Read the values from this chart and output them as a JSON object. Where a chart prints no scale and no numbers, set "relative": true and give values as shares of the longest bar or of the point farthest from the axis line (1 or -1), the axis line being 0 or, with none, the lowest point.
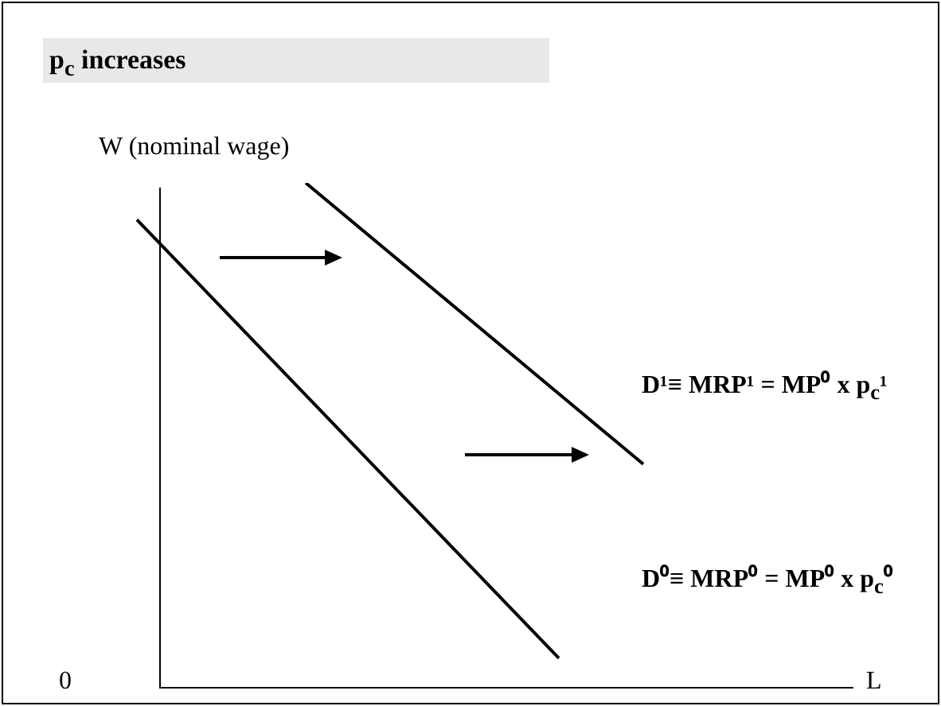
{
  "chart_data": {
    "type": "line",
    "title": "p$_{c}$ increases",
    "xlabel": "L",
    "ylabel": "W (nominal wage)",
    "annotations": [
      "0"
    ],
    "relative": true,
    "legend": false,
    "grid": false,
    "marker": "none",
    "line_style": "solid",
    "categories": [
      null,
      null,
      null,
      null,
      null,
      null,
      null,
      null,
      null,
      null,
      null,
      null,
      null,
      null,
      null,
      null,
      null,
      null
    ],
    "series": [
      {
        "name": "D⁰≡ MRP⁰ = MP⁰ x p$_{c}$⁰",
        "color": "#000000",
        "values": [
          0.927,
          null,
          null,
          null,
          null,
          null,
          null,
          null,
          null,
          null,
          0.057,
          null,
          null,
          null,
          null,
          null,
          null,
          null
        ]
      },
      {
        "name": "D¹≡ MRP¹ = MP⁰ x p$_{c}$¹",
        "color": "#000000",
        "values": [
          null,
          null,
          null,
          null,
          1,
          null,
          null,
          null,
          null,
          null,
          null,
          null,
          0.442,
          null,
          null,
          null,
          null,
          null
        ]
      }
    ]
  }
}
